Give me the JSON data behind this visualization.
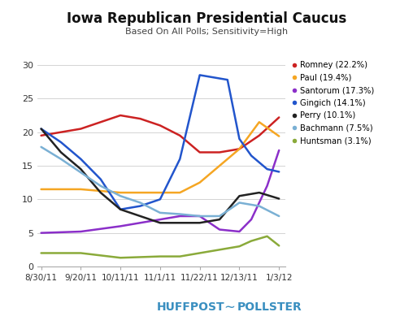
{
  "title": "Iowa Republican Presidential Caucus",
  "subtitle": "Based On All Polls; Sensitivity=High",
  "ylim": [
    0,
    30
  ],
  "yticks": [
    0,
    5,
    10,
    15,
    20,
    25,
    30
  ],
  "xtick_labels": [
    "8/30/11",
    "9/20/11",
    "10/11/11",
    "11/1/11",
    "11/22/11",
    "12/13/11",
    "1/3/12"
  ],
  "background_color": "#ffffff",
  "series": [
    {
      "name": "Romney (22.2%)",
      "color": "#cc2222",
      "x": [
        0,
        0.7,
        1,
        1.5,
        2,
        2.5,
        3,
        3.5,
        4,
        4.5,
        5,
        5.5,
        6
      ],
      "y": [
        19.5,
        20.2,
        20.5,
        21.5,
        22.5,
        22.0,
        21.0,
        19.5,
        17.0,
        17.0,
        17.5,
        19.5,
        22.2
      ]
    },
    {
      "name": "Paul (19.4%)",
      "color": "#f5a623",
      "x": [
        0,
        1,
        2,
        3,
        3.5,
        4,
        4.5,
        5,
        5.5,
        6
      ],
      "y": [
        11.5,
        11.5,
        11.0,
        11.0,
        11.0,
        12.5,
        15.0,
        17.5,
        21.5,
        19.4
      ]
    },
    {
      "name": "Santorum (17.3%)",
      "color": "#8b2fc9",
      "x": [
        0,
        1,
        2,
        3,
        3.5,
        4,
        4.5,
        5,
        5.3,
        5.7,
        6
      ],
      "y": [
        5.0,
        5.2,
        6.0,
        7.0,
        7.5,
        7.5,
        5.5,
        5.2,
        7.0,
        12.0,
        17.3
      ]
    },
    {
      "name": "Gingich (14.1%)",
      "color": "#2255cc",
      "x": [
        0,
        0.5,
        1,
        1.5,
        2,
        2.5,
        3,
        3.5,
        4,
        4.3,
        4.7,
        5,
        5.3,
        5.7,
        6
      ],
      "y": [
        20.5,
        18.5,
        16.0,
        13.0,
        8.5,
        9.0,
        10.0,
        16.0,
        28.5,
        28.2,
        27.8,
        19.0,
        16.5,
        14.5,
        14.1
      ]
    },
    {
      "name": "Perry (10.1%)",
      "color": "#222222",
      "x": [
        0,
        0.5,
        1,
        1.5,
        2,
        2.5,
        3,
        3.5,
        4,
        4.5,
        5,
        5.5,
        6
      ],
      "y": [
        20.5,
        17.0,
        14.5,
        11.0,
        8.5,
        7.5,
        6.5,
        6.5,
        6.5,
        7.0,
        10.5,
        11.0,
        10.1
      ]
    },
    {
      "name": "Bachmann (7.5%)",
      "color": "#7ab0d4",
      "x": [
        0,
        0.5,
        1,
        1.5,
        2,
        2.5,
        3,
        3.5,
        4,
        4.5,
        5,
        5.5,
        6
      ],
      "y": [
        17.8,
        16.0,
        14.0,
        12.0,
        10.5,
        9.5,
        8.0,
        7.8,
        7.5,
        7.5,
        9.5,
        9.0,
        7.5
      ]
    },
    {
      "name": "Huntsman (3.1%)",
      "color": "#8aaa3a",
      "x": [
        0,
        1,
        2,
        3,
        3.5,
        4,
        4.5,
        5,
        5.3,
        5.7,
        6
      ],
      "y": [
        2.0,
        2.0,
        1.3,
        1.5,
        1.5,
        2.0,
        2.5,
        3.0,
        3.8,
        4.5,
        3.1
      ]
    }
  ],
  "huffpost_color": "#3a8fc0"
}
